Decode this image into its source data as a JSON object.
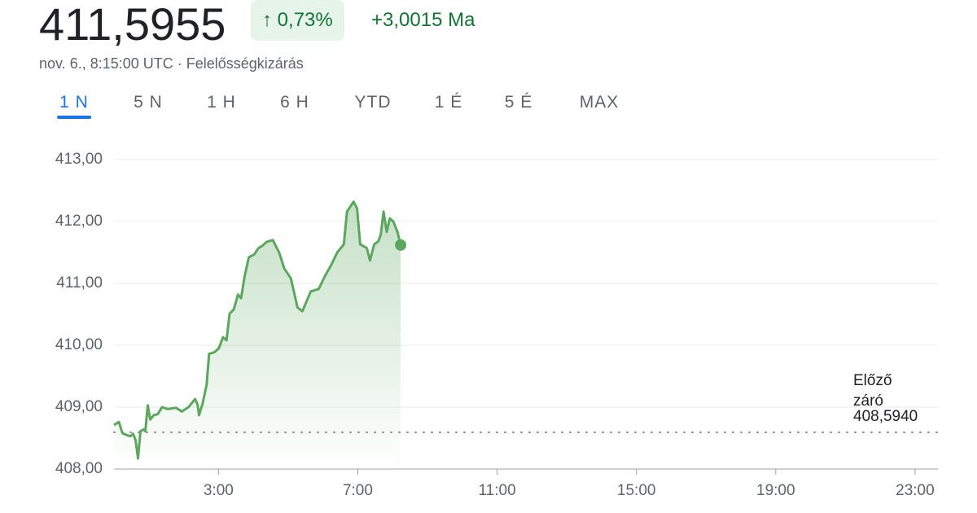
{
  "header": {
    "price": "411,5955",
    "change_pct": "0,73%",
    "change_abs": "+3,0015 Ma",
    "timestamp": "nov. 6., 8:15:00 UTC · Felelősségkizárás"
  },
  "tabs": [
    "1 N",
    "5 N",
    "1 H",
    "6 H",
    "YTD",
    "1 É",
    "5 É",
    "MAX"
  ],
  "chart_data": {
    "type": "line",
    "color": "#5aa75d",
    "x": [
      0,
      0.14,
      0.24,
      0.36,
      0.47,
      0.55,
      0.62,
      0.69,
      0.76,
      0.85,
      0.9,
      0.97,
      1.04,
      1.14,
      1.26,
      1.38,
      1.54,
      1.78,
      1.95,
      2.14,
      2.33,
      2.4,
      2.44,
      2.54,
      2.66,
      2.73,
      2.89,
      3.01,
      3.13,
      3.23,
      3.32,
      3.44,
      3.56,
      3.65,
      3.75,
      3.87,
      4.03,
      4.15,
      4.27,
      4.38,
      4.56,
      4.74,
      4.89,
      5.08,
      5.27,
      5.41,
      5.65,
      5.88,
      6.05,
      6.24,
      6.41,
      6.6,
      6.69,
      6.88,
      6.98,
      7.07,
      7.26,
      7.35,
      7.47,
      7.59,
      7.66,
      7.74,
      7.83,
      7.92,
      8.02,
      8.14,
      8.23
    ],
    "values": [
      408.71,
      408.76,
      408.58,
      408.55,
      408.53,
      408.57,
      408.47,
      408.17,
      408.61,
      408.64,
      408.61,
      409.03,
      408.8,
      408.87,
      408.89,
      409.0,
      408.97,
      408.99,
      408.93,
      409.0,
      409.13,
      409.04,
      408.87,
      409.05,
      409.36,
      409.86,
      409.89,
      409.95,
      410.13,
      410.08,
      410.51,
      410.58,
      410.82,
      410.76,
      411.11,
      411.42,
      411.47,
      411.57,
      411.61,
      411.67,
      411.7,
      411.5,
      411.24,
      411.08,
      410.61,
      410.55,
      410.87,
      410.91,
      411.11,
      411.3,
      411.5,
      411.63,
      412.16,
      412.32,
      412.21,
      411.63,
      411.57,
      411.37,
      411.63,
      411.68,
      411.79,
      412.16,
      411.83,
      412.05,
      412.0,
      411.83,
      411.62
    ],
    "xlim": [
      0,
      24
    ],
    "xticks": [
      {
        "value": 3,
        "label": "3:00"
      },
      {
        "value": 7,
        "label": "7:00"
      },
      {
        "value": 11,
        "label": "11:00"
      },
      {
        "value": 15,
        "label": "15:00"
      },
      {
        "value": 19,
        "label": "19:00"
      },
      {
        "value": 23,
        "label": "23:00"
      }
    ],
    "ylim": [
      408,
      413
    ],
    "yticks": [
      {
        "value": 408,
        "label": "408,00"
      },
      {
        "value": 409,
        "label": "409,00"
      },
      {
        "value": 410,
        "label": "410,00"
      },
      {
        "value": 411,
        "label": "411,00"
      },
      {
        "value": 412,
        "label": "412,00"
      },
      {
        "value": 413,
        "label": "413,00"
      }
    ],
    "grid": true,
    "previous_close": {
      "label": [
        "Előző",
        "záró"
      ],
      "value": 408.594,
      "value_label": "408,5940"
    }
  }
}
